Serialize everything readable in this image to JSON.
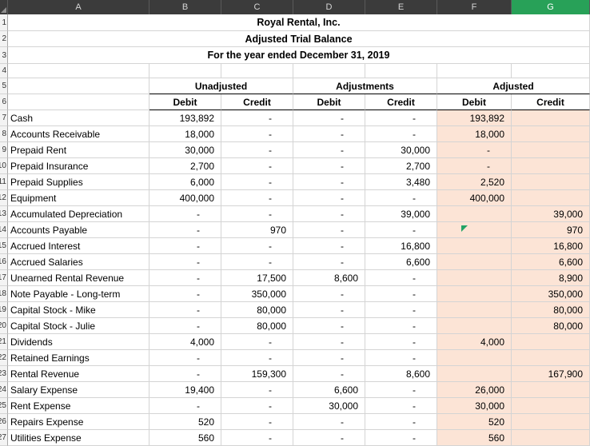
{
  "sheet": {
    "selected_column": "G",
    "colors": {
      "header_bg": "#3b3b3b",
      "header_text": "#d6d6d6",
      "selected_header_bg": "#28a158",
      "adjusted_fill": "#fce4d6",
      "gridline": "#d4d4d4",
      "marker_green": "#21a366"
    }
  },
  "columns": [
    "A",
    "B",
    "C",
    "D",
    "E",
    "F",
    "G"
  ],
  "row_numbers": [
    "1",
    "2",
    "3",
    "4",
    "5",
    "6"
  ],
  "titles": {
    "line1": "Royal Rental, Inc.",
    "line2": "Adjusted Trial Balance",
    "line3": "For the year ended December 31, 2019"
  },
  "groups": [
    "Unadjusted",
    "Adjustments",
    "Adjusted"
  ],
  "subheaders": [
    "Debit",
    "Credit",
    "Debit",
    "Credit",
    "Debit",
    "Credit"
  ],
  "rows": [
    {
      "n": "7",
      "label": "Cash",
      "cells": [
        "193,892",
        "-",
        "-",
        "-",
        "193,892",
        ""
      ]
    },
    {
      "n": "8",
      "label": "Accounts Receivable",
      "cells": [
        "18,000",
        "-",
        "-",
        "-",
        "18,000",
        ""
      ]
    },
    {
      "n": "9",
      "label": "Prepaid Rent",
      "cells": [
        "30,000",
        "-",
        "-",
        "30,000",
        "-",
        ""
      ]
    },
    {
      "n": "10",
      "label": "Prepaid Insurance",
      "cells": [
        "2,700",
        "-",
        "-",
        "2,700",
        "-",
        ""
      ]
    },
    {
      "n": "11",
      "label": "Prepaid Supplies",
      "cells": [
        "6,000",
        "-",
        "-",
        "3,480",
        "2,520",
        ""
      ]
    },
    {
      "n": "12",
      "label": "Equipment",
      "cells": [
        "400,000",
        "-",
        "-",
        "-",
        "400,000",
        ""
      ]
    },
    {
      "n": "13",
      "label": "Accumulated Depreciation",
      "cells": [
        "-",
        "-",
        "-",
        "39,000",
        "",
        "39,000"
      ]
    },
    {
      "n": "14",
      "label": "Accounts Payable",
      "cells": [
        "-",
        "970",
        "-",
        "-",
        "",
        "970"
      ],
      "marker": true
    },
    {
      "n": "15",
      "label": "Accrued Interest",
      "cells": [
        "-",
        "-",
        "-",
        "16,800",
        "",
        "16,800"
      ]
    },
    {
      "n": "16",
      "label": "Accrued Salaries",
      "cells": [
        "-",
        "-",
        "-",
        "6,600",
        "",
        "6,600"
      ]
    },
    {
      "n": "17",
      "label": "Unearned Rental Revenue",
      "cells": [
        "-",
        "17,500",
        "8,600",
        "-",
        "",
        "8,900"
      ]
    },
    {
      "n": "18",
      "label": "Note Payable - Long-term",
      "cells": [
        "-",
        "350,000",
        "-",
        "-",
        "",
        "350,000"
      ]
    },
    {
      "n": "19",
      "label": "Capital Stock - Mike",
      "cells": [
        "-",
        "80,000",
        "-",
        "-",
        "",
        "80,000"
      ]
    },
    {
      "n": "20",
      "label": "Capital Stock - Julie",
      "cells": [
        "-",
        "80,000",
        "-",
        "-",
        "",
        "80,000"
      ]
    },
    {
      "n": "21",
      "label": "Dividends",
      "cells": [
        "4,000",
        "-",
        "-",
        "-",
        "4,000",
        ""
      ]
    },
    {
      "n": "22",
      "label": "Retained Earnings",
      "cells": [
        "-",
        "-",
        "-",
        "-",
        "",
        ""
      ]
    },
    {
      "n": "23",
      "label": "Rental Revenue",
      "cells": [
        "-",
        "159,300",
        "-",
        "8,600",
        "",
        "167,900"
      ]
    },
    {
      "n": "24",
      "label": "Salary Expense",
      "cells": [
        "19,400",
        "-",
        "6,600",
        "-",
        "26,000",
        ""
      ]
    },
    {
      "n": "25",
      "label": "Rent Expense",
      "cells": [
        "-",
        "-",
        "30,000",
        "-",
        "30,000",
        ""
      ]
    },
    {
      "n": "26",
      "label": "Repairs Expense",
      "cells": [
        "520",
        "-",
        "-",
        "-",
        "520",
        ""
      ]
    },
    {
      "n": "27",
      "label": "Utilities Expense",
      "cells": [
        "560",
        "-",
        "-",
        "-",
        "560",
        ""
      ]
    }
  ]
}
